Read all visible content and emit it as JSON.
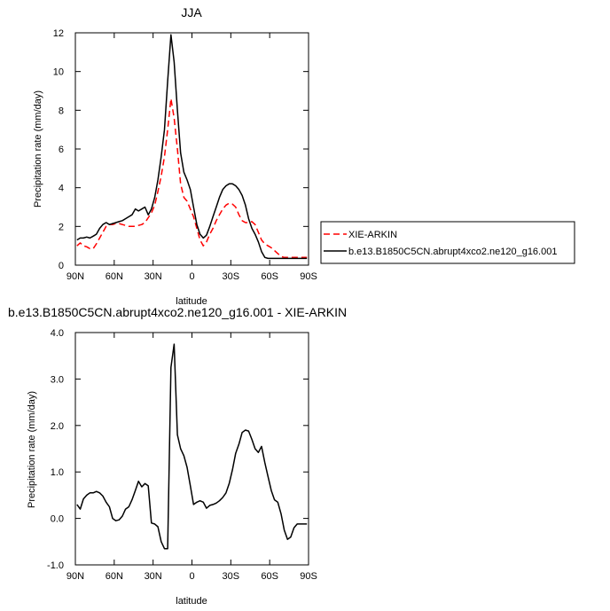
{
  "chart_data": [
    {
      "type": "line",
      "title": "JJA",
      "xlabel": "latitude",
      "ylabel": "Precipitation rate (mm/day)",
      "xlim": [
        90,
        -90
      ],
      "ylim": [
        0,
        12
      ],
      "xticks": [
        {
          "value": 90,
          "label": "90N"
        },
        {
          "value": 60,
          "label": "60N"
        },
        {
          "value": 30,
          "label": "30N"
        },
        {
          "value": 0,
          "label": "0"
        },
        {
          "value": -30,
          "label": "30S"
        },
        {
          "value": -60,
          "label": "60S"
        },
        {
          "value": -90,
          "label": "90S"
        }
      ],
      "yticks": [
        {
          "value": 0,
          "label": "0"
        },
        {
          "value": 2,
          "label": "2"
        },
        {
          "value": 4,
          "label": "4"
        },
        {
          "value": 6,
          "label": "6"
        },
        {
          "value": 8,
          "label": "8"
        },
        {
          "value": 10,
          "label": "10"
        },
        {
          "value": 12,
          "label": "12"
        }
      ],
      "grid": false,
      "legend_position": "right",
      "series": [
        {
          "name": "XIE-ARKIN",
          "color": "#ff0000",
          "dash": "dashed",
          "x": [
            88.75,
            86.25,
            83.75,
            81.25,
            78.75,
            76.25,
            73.75,
            71.25,
            68.75,
            66.25,
            63.75,
            61.25,
            58.75,
            56.25,
            53.75,
            51.25,
            48.75,
            46.25,
            43.75,
            41.25,
            38.75,
            36.25,
            33.75,
            31.25,
            28.75,
            26.25,
            23.75,
            21.25,
            18.75,
            16.25,
            13.75,
            11.25,
            8.75,
            6.25,
            3.75,
            1.25,
            -1.25,
            -3.75,
            -6.25,
            -8.75,
            -11.25,
            -13.75,
            -16.25,
            -18.75,
            -21.25,
            -23.75,
            -26.25,
            -28.75,
            -31.25,
            -33.75,
            -36.25,
            -38.75,
            -41.25,
            -43.75,
            -46.25,
            -48.75,
            -51.25,
            -53.75,
            -56.25,
            -58.75,
            -61.25,
            -63.75,
            -66.25,
            -68.75,
            -71.25,
            -73.75,
            -76.25,
            -78.75,
            -81.25,
            -83.75,
            -86.25,
            -88.75
          ],
          "y": [
            1.0,
            1.15,
            1.0,
            0.95,
            0.85,
            0.85,
            1.1,
            1.4,
            1.7,
            2.0,
            2.1,
            2.1,
            2.15,
            2.15,
            2.1,
            2.05,
            2.0,
            2.0,
            2.0,
            2.05,
            2.1,
            2.2,
            2.45,
            2.7,
            3.1,
            3.8,
            4.6,
            5.6,
            7.0,
            8.6,
            7.6,
            6.0,
            4.2,
            3.5,
            3.3,
            2.9,
            2.5,
            1.9,
            1.3,
            1.0,
            1.2,
            1.6,
            1.9,
            2.3,
            2.6,
            2.9,
            3.1,
            3.2,
            3.15,
            3.0,
            2.6,
            2.3,
            2.2,
            2.2,
            2.25,
            2.1,
            1.7,
            1.3,
            1.1,
            1.0,
            0.9,
            0.75,
            0.6,
            0.45,
            0.4,
            0.4,
            0.4,
            0.4,
            0.4,
            0.4,
            0.4,
            0.4
          ]
        },
        {
          "name": "b.e13.B1850C5CN.abrupt4xco2.ne120_g16.001",
          "color": "#000000",
          "dash": "solid",
          "x": [
            88.75,
            86.25,
            83.75,
            81.25,
            78.75,
            76.25,
            73.75,
            71.25,
            68.75,
            66.25,
            63.75,
            61.25,
            58.75,
            56.25,
            53.75,
            51.25,
            48.75,
            46.25,
            43.75,
            41.25,
            38.75,
            36.25,
            33.75,
            31.25,
            28.75,
            26.25,
            23.75,
            21.25,
            18.75,
            16.25,
            13.75,
            11.25,
            8.75,
            6.25,
            3.75,
            1.25,
            -1.25,
            -3.75,
            -6.25,
            -8.75,
            -11.25,
            -13.75,
            -16.25,
            -18.75,
            -21.25,
            -23.75,
            -26.25,
            -28.75,
            -31.25,
            -33.75,
            -36.25,
            -38.75,
            -41.25,
            -43.75,
            -46.25,
            -48.75,
            -51.25,
            -53.75,
            -56.25,
            -58.75,
            -61.25,
            -63.75,
            -66.25,
            -68.75,
            -71.25,
            -73.75,
            -76.25,
            -78.75,
            -81.25,
            -83.75,
            -86.25,
            -88.75
          ],
          "y": [
            1.3,
            1.4,
            1.4,
            1.45,
            1.4,
            1.5,
            1.6,
            1.9,
            2.1,
            2.2,
            2.1,
            2.15,
            2.2,
            2.25,
            2.3,
            2.4,
            2.5,
            2.6,
            2.9,
            2.8,
            2.9,
            3.0,
            2.6,
            2.9,
            3.5,
            4.4,
            5.6,
            7.0,
            9.5,
            11.9,
            10.5,
            8.0,
            5.8,
            4.8,
            4.4,
            3.9,
            3.0,
            2.1,
            1.6,
            1.4,
            1.55,
            2.0,
            2.5,
            3.0,
            3.5,
            3.9,
            4.1,
            4.2,
            4.2,
            4.1,
            3.9,
            3.6,
            3.1,
            2.4,
            1.9,
            1.6,
            1.2,
            0.7,
            0.4,
            0.35,
            0.35,
            0.35,
            0.35,
            0.35,
            0.35,
            0.35,
            0.35,
            0.35,
            0.35,
            0.35,
            0.35,
            0.35
          ]
        }
      ]
    },
    {
      "type": "line",
      "title": "b.e13.B1850C5CN.abrupt4xco2.ne120_g16.001 - XIE-ARKIN",
      "xlabel": "latitude",
      "ylabel": "Precipitation rate (mm/day)",
      "xlim": [
        90,
        -90
      ],
      "ylim": [
        -1.0,
        4.0
      ],
      "xticks": [
        {
          "value": 90,
          "label": "90N"
        },
        {
          "value": 60,
          "label": "60N"
        },
        {
          "value": 30,
          "label": "30N"
        },
        {
          "value": 0,
          "label": "0"
        },
        {
          "value": -30,
          "label": "30S"
        },
        {
          "value": -60,
          "label": "60S"
        },
        {
          "value": -90,
          "label": "90S"
        }
      ],
      "yticks": [
        {
          "value": -1.0,
          "label": "-1.0"
        },
        {
          "value": 0.0,
          "label": "0.0"
        },
        {
          "value": 1.0,
          "label": "1.0"
        },
        {
          "value": 2.0,
          "label": "2.0"
        },
        {
          "value": 3.0,
          "label": "3.0"
        },
        {
          "value": 4.0,
          "label": "4.0"
        }
      ],
      "grid": false,
      "series": [
        {
          "color": "#000000",
          "dash": "solid",
          "x": [
            88.75,
            86.25,
            83.75,
            81.25,
            78.75,
            76.25,
            73.75,
            71.25,
            68.75,
            66.25,
            63.75,
            61.25,
            58.75,
            56.25,
            53.75,
            51.25,
            48.75,
            46.25,
            43.75,
            41.25,
            38.75,
            36.25,
            33.75,
            31.25,
            28.75,
            26.25,
            23.75,
            21.25,
            18.75,
            16.25,
            13.75,
            11.25,
            8.75,
            6.25,
            3.75,
            1.25,
            -1.25,
            -3.75,
            -6.25,
            -8.75,
            -11.25,
            -13.75,
            -16.25,
            -18.75,
            -21.25,
            -23.75,
            -26.25,
            -28.75,
            -31.25,
            -33.75,
            -36.25,
            -38.75,
            -41.25,
            -43.75,
            -46.25,
            -48.75,
            -51.25,
            -53.75,
            -56.25,
            -58.75,
            -61.25,
            -63.75,
            -66.25,
            -68.75,
            -71.25,
            -73.75,
            -76.25,
            -78.75,
            -81.25,
            -83.75,
            -86.25,
            -88.75
          ],
          "y": [
            0.3,
            0.2,
            0.42,
            0.5,
            0.55,
            0.55,
            0.58,
            0.55,
            0.48,
            0.35,
            0.25,
            0.0,
            -0.05,
            -0.03,
            0.05,
            0.2,
            0.25,
            0.4,
            0.6,
            0.8,
            0.68,
            0.75,
            0.7,
            -0.1,
            -0.12,
            -0.18,
            -0.5,
            -0.65,
            -0.65,
            3.25,
            3.75,
            1.8,
            1.5,
            1.35,
            1.1,
            0.7,
            0.3,
            0.35,
            0.38,
            0.35,
            0.22,
            0.28,
            0.3,
            0.33,
            0.38,
            0.45,
            0.55,
            0.75,
            1.05,
            1.4,
            1.6,
            1.85,
            1.9,
            1.88,
            1.7,
            1.5,
            1.42,
            1.55,
            1.2,
            0.9,
            0.6,
            0.4,
            0.35,
            0.1,
            -0.25,
            -0.45,
            -0.4,
            -0.2,
            -0.12,
            -0.12,
            -0.12,
            -0.12
          ]
        }
      ]
    }
  ]
}
